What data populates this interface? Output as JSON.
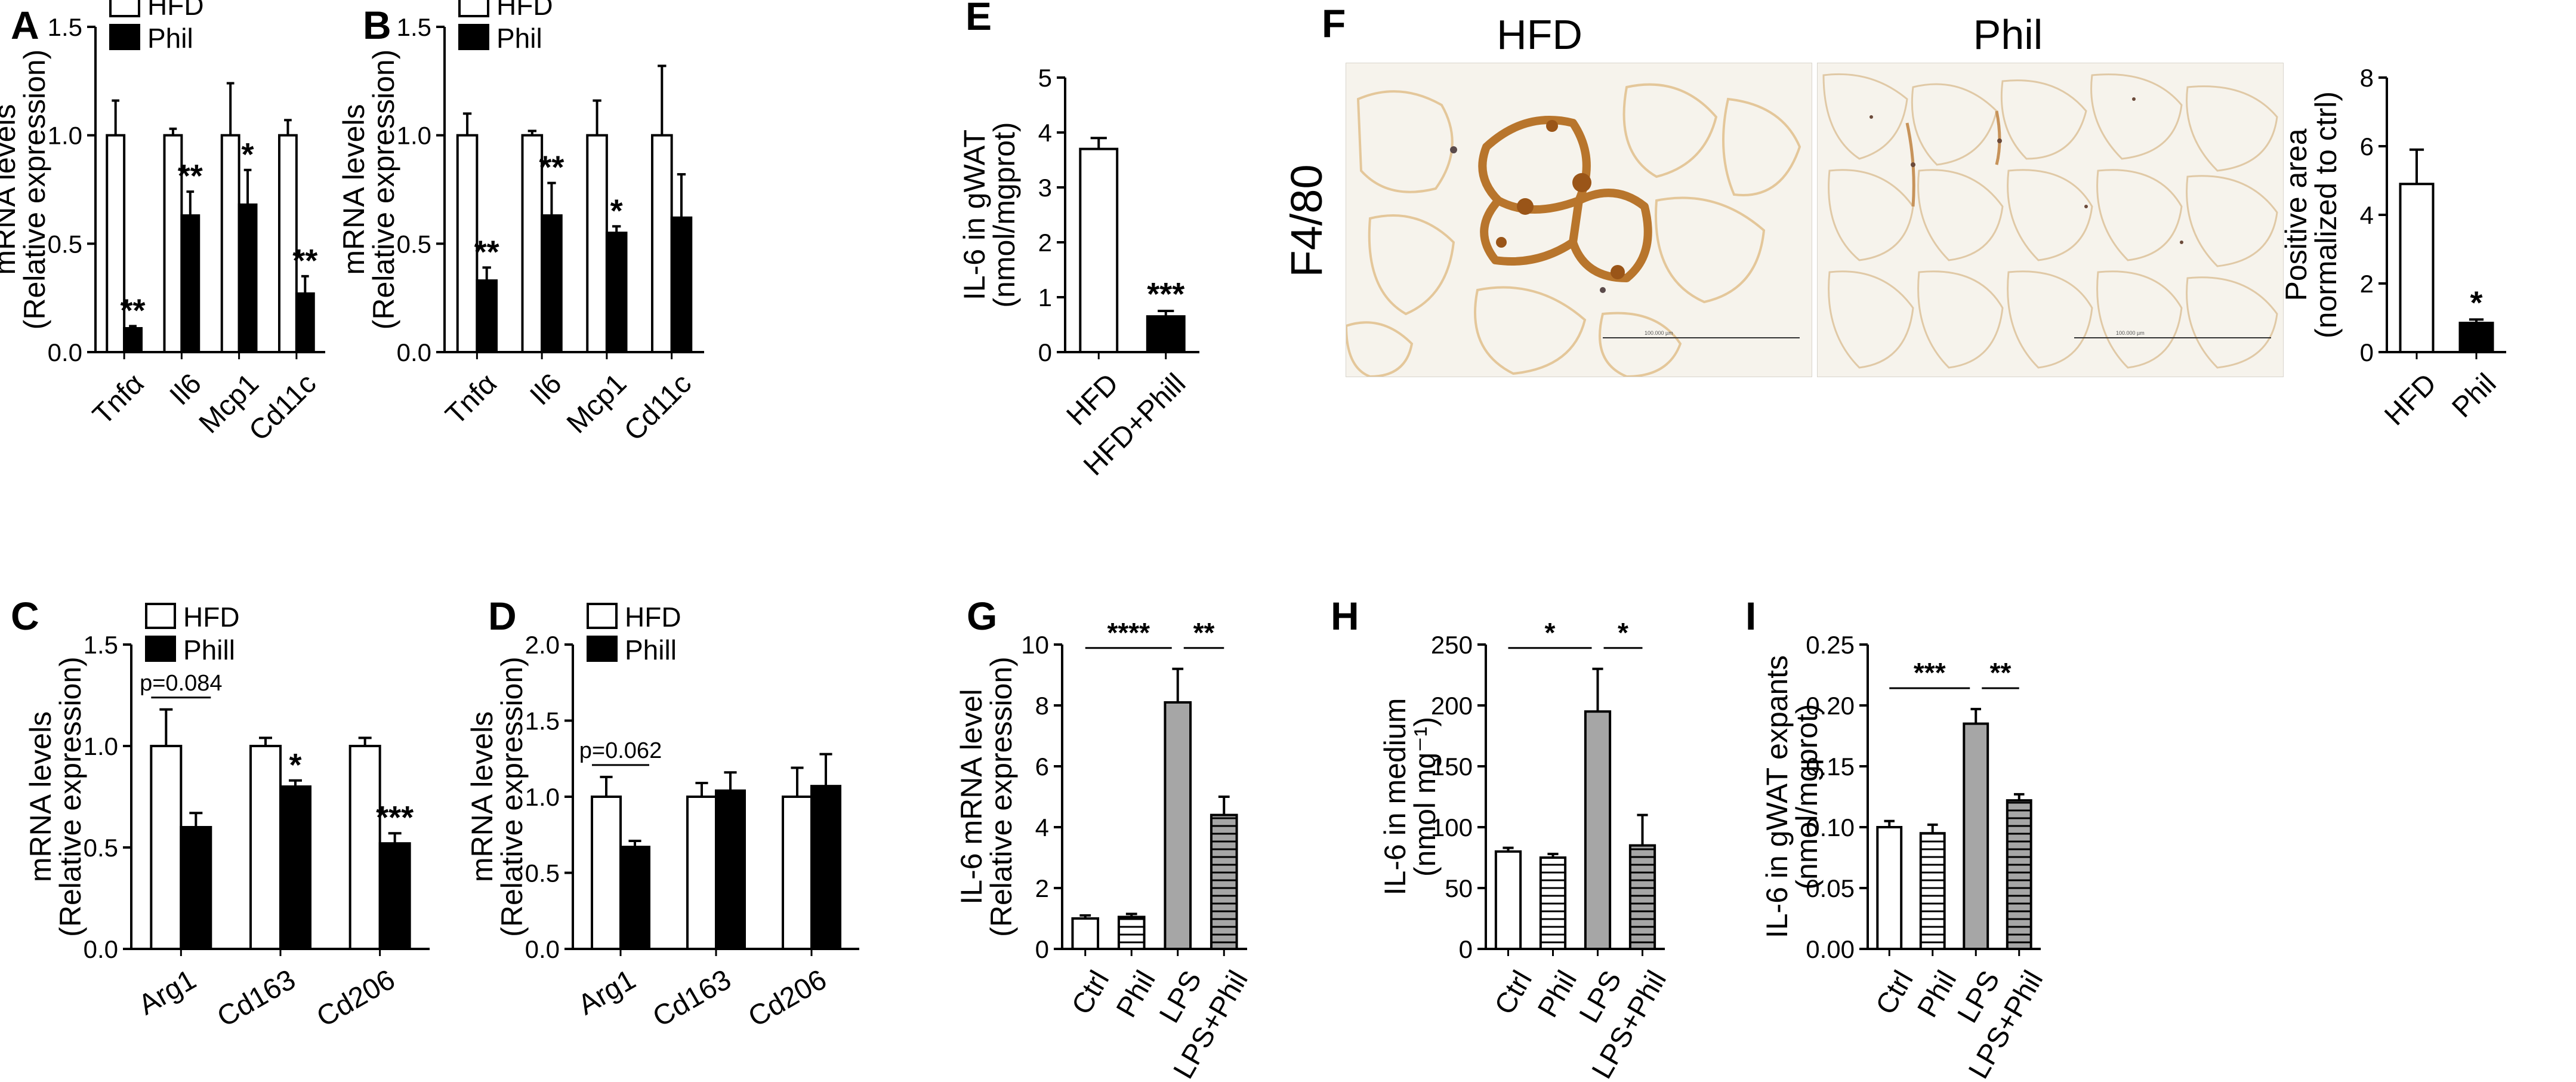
{
  "figure": {
    "colors": {
      "bar_outline": "#000000",
      "black": "#000000",
      "white": "#ffffff",
      "gray": "#a6a6a6",
      "stain_brown": "#b8752c",
      "tissue_bg": "#f6f3ec"
    },
    "microscopy": {
      "panel_label": "F",
      "row_label": "F4/80",
      "images": [
        {
          "title": "HFD",
          "scale_text": "100.000 µm"
        },
        {
          "title": "Phil",
          "scale_text": "100.000 µm"
        }
      ]
    }
  },
  "chart_data": [
    {
      "id": "A",
      "type": "bar",
      "panel_label": "A",
      "categories": [
        "Tnfα",
        "Il6",
        "Mcp1",
        "Cd11c"
      ],
      "series": [
        {
          "name": "HFD",
          "values": [
            1.0,
            1.0,
            1.0,
            1.0
          ],
          "errors": [
            0.16,
            0.03,
            0.24,
            0.07
          ]
        },
        {
          "name": "Phil",
          "values": [
            0.11,
            0.63,
            0.68,
            0.27
          ],
          "errors": [
            0.01,
            0.11,
            0.16,
            0.08
          ]
        }
      ],
      "significance": [
        "**",
        "**",
        "*",
        "**"
      ],
      "ylabel": [
        "mRNA levels",
        "(Relative expression)"
      ],
      "ylim": [
        0,
        1.5
      ],
      "yticks": [
        0.0,
        0.5,
        1.0,
        1.5
      ],
      "legend": "top-left"
    },
    {
      "id": "B",
      "type": "bar",
      "panel_label": "B",
      "categories": [
        "Tnfα",
        "Il6",
        "Mcp1",
        "Cd11c"
      ],
      "series": [
        {
          "name": "HFD",
          "values": [
            1.0,
            1.0,
            1.0,
            1.0
          ],
          "errors": [
            0.1,
            0.02,
            0.16,
            0.32
          ]
        },
        {
          "name": "Phil",
          "values": [
            0.33,
            0.63,
            0.55,
            0.62
          ],
          "errors": [
            0.06,
            0.15,
            0.03,
            0.2
          ]
        }
      ],
      "significance": [
        "**",
        "**",
        "*",
        ""
      ],
      "ylabel": [
        "mRNA levels",
        "(Relative expression)"
      ],
      "ylim": [
        0,
        1.5
      ],
      "yticks": [
        0.0,
        0.5,
        1.0,
        1.5
      ],
      "legend": "top-left"
    },
    {
      "id": "E",
      "type": "bar",
      "panel_label": "E",
      "categories": [
        "HFD",
        "HFD+Phill"
      ],
      "values": [
        3.7,
        0.65
      ],
      "errors": [
        0.2,
        0.1
      ],
      "fills": [
        "white",
        "black"
      ],
      "significance": [
        "",
        "***"
      ],
      "ylabel": [
        "IL-6 in gWAT",
        "(nmol/mgprot)"
      ],
      "ylim": [
        0,
        5
      ],
      "yticks": [
        0,
        1,
        2,
        3,
        4,
        5
      ]
    },
    {
      "id": "F2",
      "type": "bar",
      "panel_label": "",
      "categories": [
        "HFD",
        "Phil"
      ],
      "values": [
        4.9,
        0.85
      ],
      "errors": [
        1.0,
        0.1
      ],
      "fills": [
        "white",
        "black"
      ],
      "significance": [
        "",
        "*"
      ],
      "ylabel": [
        "Positive area",
        "(normalized to ctrl)"
      ],
      "ylim": [
        0,
        8
      ],
      "yticks": [
        0,
        2,
        4,
        6,
        8
      ]
    },
    {
      "id": "C",
      "type": "bar",
      "panel_label": "C",
      "categories": [
        "Arg1",
        "Cd163",
        "Cd206"
      ],
      "series": [
        {
          "name": "HFD",
          "values": [
            1.0,
            1.0,
            1.0
          ],
          "errors": [
            0.18,
            0.04,
            0.04
          ]
        },
        {
          "name": "Phill",
          "values": [
            0.6,
            0.8,
            0.52
          ],
          "errors": [
            0.07,
            0.03,
            0.05
          ]
        }
      ],
      "significance": [
        "",
        "*",
        "***"
      ],
      "bracket": {
        "text": "p=0.084",
        "group": 0
      },
      "ylabel": [
        "mRNA levels",
        "(Relative expression)"
      ],
      "ylim": [
        0,
        1.5
      ],
      "yticks": [
        0.0,
        0.5,
        1.0,
        1.5
      ],
      "legend": "top-left"
    },
    {
      "id": "D",
      "type": "bar",
      "panel_label": "D",
      "categories": [
        "Arg1",
        "Cd163",
        "Cd206"
      ],
      "series": [
        {
          "name": "HFD",
          "values": [
            1.0,
            1.0,
            1.0
          ],
          "errors": [
            0.13,
            0.09,
            0.19
          ]
        },
        {
          "name": "Phill",
          "values": [
            0.67,
            1.04,
            1.07
          ],
          "errors": [
            0.04,
            0.12,
            0.21
          ]
        }
      ],
      "significance": [
        "",
        "",
        ""
      ],
      "bracket": {
        "text": "p=0.062",
        "group": 0
      },
      "ylabel": [
        "mRNA levels",
        "(Relative expression)"
      ],
      "ylim": [
        0,
        2.0
      ],
      "yticks": [
        0.0,
        0.5,
        1.0,
        1.5,
        2.0
      ],
      "legend": "top-left"
    },
    {
      "id": "G",
      "type": "bar",
      "panel_label": "G",
      "categories": [
        "Ctrl",
        "Phil",
        "LPS",
        "LPS+Phil"
      ],
      "values": [
        1.0,
        1.05,
        8.1,
        4.4
      ],
      "errors": [
        0.1,
        0.1,
        1.1,
        0.6
      ],
      "fills": [
        "white",
        "hlines",
        "gray",
        "hlines-gray"
      ],
      "brackets": [
        {
          "from": 0,
          "to": 2,
          "text": "****"
        },
        {
          "from": 2,
          "to": 3,
          "text": "**"
        }
      ],
      "ylabel": [
        "IL-6 mRNA level",
        "(Relative expression)"
      ],
      "ylim": [
        0,
        10
      ],
      "yticks": [
        0,
        2,
        4,
        6,
        8,
        10
      ]
    },
    {
      "id": "H",
      "type": "bar",
      "panel_label": "H",
      "categories": [
        "Ctrl",
        "Phil",
        "LPS",
        "LPS+Phil"
      ],
      "values": [
        80,
        75,
        195,
        85
      ],
      "errors": [
        3,
        3,
        35,
        25
      ],
      "fills": [
        "white",
        "hlines",
        "gray",
        "hlines-gray"
      ],
      "brackets": [
        {
          "from": 0,
          "to": 2,
          "text": "*"
        },
        {
          "from": 2,
          "to": 3,
          "text": "*"
        }
      ],
      "ylabel": [
        "IL-6 in medium",
        "(nmol mg⁻¹)"
      ],
      "ylim": [
        0,
        250
      ],
      "yticks": [
        0,
        50,
        100,
        150,
        200,
        250
      ]
    },
    {
      "id": "I",
      "type": "bar",
      "panel_label": "I",
      "categories": [
        "Ctrl",
        "Phil",
        "LPS",
        "LPS+Phil"
      ],
      "values": [
        0.1,
        0.095,
        0.185,
        0.122
      ],
      "errors": [
        0.005,
        0.007,
        0.012,
        0.005
      ],
      "fills": [
        "white",
        "hlines",
        "gray",
        "hlines-gray"
      ],
      "brackets": [
        {
          "from": 0,
          "to": 2,
          "text": "***"
        },
        {
          "from": 2,
          "to": 3,
          "text": "**"
        }
      ],
      "ylabel": [
        "IL-6 in gWAT expants",
        "(nmol/mgprot)"
      ],
      "ylim": [
        0,
        0.25
      ],
      "yticks": [
        0.0,
        0.05,
        0.1,
        0.15,
        0.2,
        0.25
      ],
      "tickDecimals": 2
    }
  ]
}
